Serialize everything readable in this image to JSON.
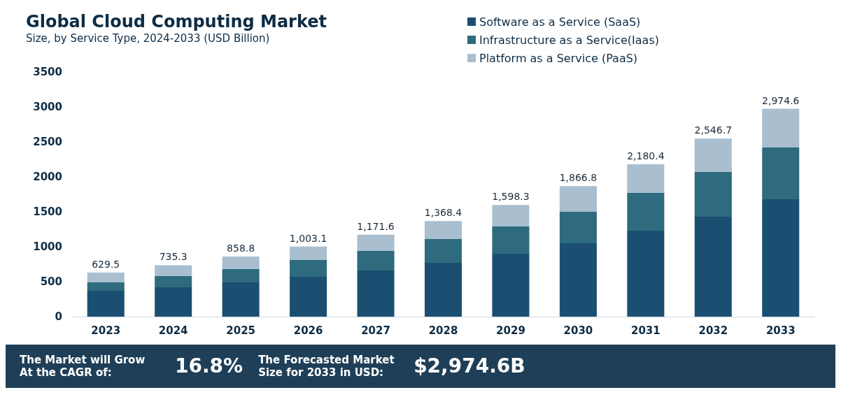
{
  "chart_data": {
    "type": "bar",
    "title": "Global Cloud Computing Market",
    "subtitle": "Size, by Service Type, 2024-2033 (USD Billion)",
    "categories": [
      "2023",
      "2024",
      "2025",
      "2026",
      "2027",
      "2028",
      "2029",
      "2030",
      "2031",
      "2032",
      "2033"
    ],
    "series": [
      {
        "name": "Software as a Service (SaaS)",
        "color": "#1b4f72",
        "values": [
          370,
          420,
          490,
          570,
          660,
          770,
          900,
          1050,
          1230,
          1430,
          1680
        ]
      },
      {
        "name": "Infrastructure as a Service(Iaas)",
        "color": "#2e6b7e",
        "values": [
          120,
          160,
          190,
          240,
          280,
          340,
          390,
          450,
          540,
          640,
          740
        ]
      },
      {
        "name": "Platform as a Service (PaaS)",
        "color": "#a9bfd0",
        "values": [
          139.5,
          155.3,
          178.8,
          193.1,
          231.6,
          258.4,
          308.3,
          366.8,
          410.4,
          476.7,
          554.6
        ]
      }
    ],
    "stacked": true,
    "totals": [
      "629.5",
      "735.3",
      "858.8",
      "1,003.1",
      "1,171.6",
      "1,368.4",
      "1,598.3",
      "1,866.8",
      "2,180.4",
      "2,546.7",
      "2,974.6"
    ],
    "ylim": [
      0,
      3500
    ],
    "yticks": [
      0,
      500,
      1000,
      1500,
      2000,
      2500,
      3000,
      3500
    ],
    "grid": false,
    "legend": "top right",
    "annotations": [
      "The Market will Grow At the CAGR of:",
      "16.8%",
      "The Forecasted Market Size for 2033 in USD:",
      "$2,974.6B"
    ]
  }
}
